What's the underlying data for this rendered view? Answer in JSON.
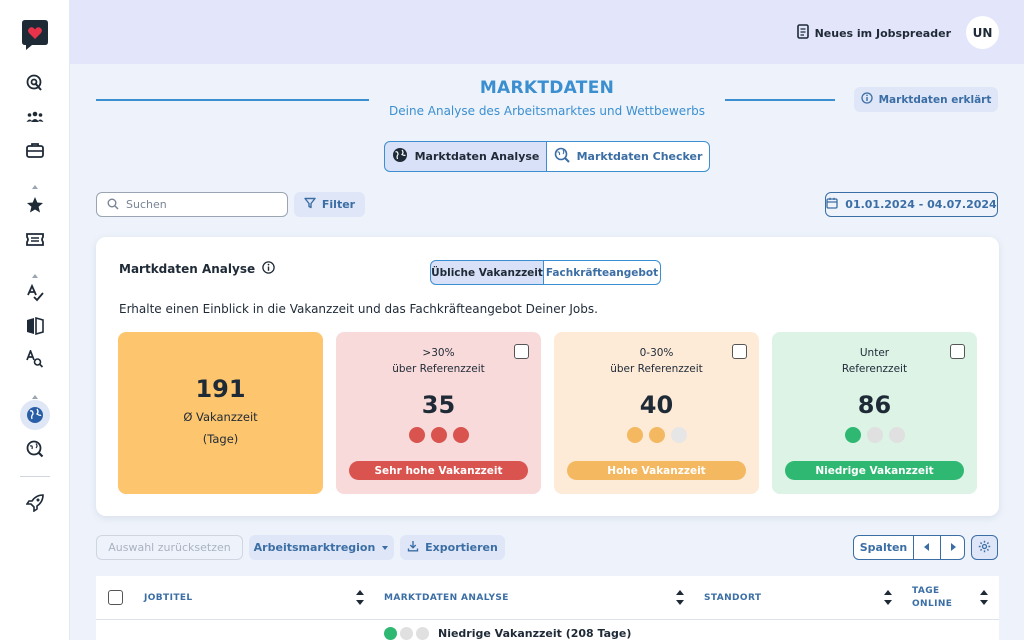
{
  "topbar": {
    "news_label": "Neues im Jobspreader",
    "avatar_initials": "UN"
  },
  "header": {
    "title": "MARKTDATEN",
    "subtitle": "Deine Analyse des Arbeitsmarktes und Wettbewerbs",
    "explain_label": "Marktdaten erklärt"
  },
  "view_tabs": [
    {
      "label": "Marktdaten Analyse",
      "active": true
    },
    {
      "label": "Marktdaten Checker",
      "active": false
    }
  ],
  "toolbar": {
    "search_placeholder": "Suchen",
    "filter_label": "Filter",
    "date_range": "01.01.2024 - 04.07.2024"
  },
  "analysis": {
    "title": "Martkdaten Analyse",
    "toggle": [
      {
        "label": "Übliche Vakanzzeit",
        "active": true
      },
      {
        "label": "Fachkräfteangebot",
        "active": false
      }
    ],
    "description": "Erhalte einen Einblick in die Vakanzzeit und das Fachkräfteangebot Deiner Jobs.",
    "summary": {
      "value": "191",
      "label1": "Ø Vakanzzeit",
      "label2": "(Tage)"
    },
    "cards": [
      {
        "line1": ">30%",
        "line2": "über Referenzzeit",
        "value": "35",
        "pill": "Sehr hohe Vakanzzeit",
        "active_clocks": 3
      },
      {
        "line1": "0-30%",
        "line2": "über Referenzzeit",
        "value": "40",
        "pill": "Hohe Vakanzzeit",
        "active_clocks": 2
      },
      {
        "line1": "Unter",
        "line2": "Referenzzeit",
        "value": "86",
        "pill": "Niedrige Vakanzzeit",
        "active_clocks": 1
      }
    ]
  },
  "actions": {
    "reset_label": "Auswahl zurücksetzen",
    "region_label": "Arbeitsmarktregion",
    "export_label": "Exportieren",
    "columns_label": "Spalten"
  },
  "table": {
    "columns": [
      "JOBTITEL",
      "MARKTDATEN ANALYSE",
      "STANDORT",
      "TAGE",
      "ONLINE"
    ],
    "first_row_analysis": "Niedrige Vakanzzeit (208 Tage)"
  },
  "colors": {
    "accent": "#3b8fd0",
    "summary_bg": "#fdc56d",
    "very_high_bg": "#f8dada",
    "very_high_accent": "#d9534f",
    "high_bg": "#fdebd8",
    "high_accent": "#f4b860",
    "low_bg": "#dcf3e6",
    "low_accent": "#2eb872"
  }
}
